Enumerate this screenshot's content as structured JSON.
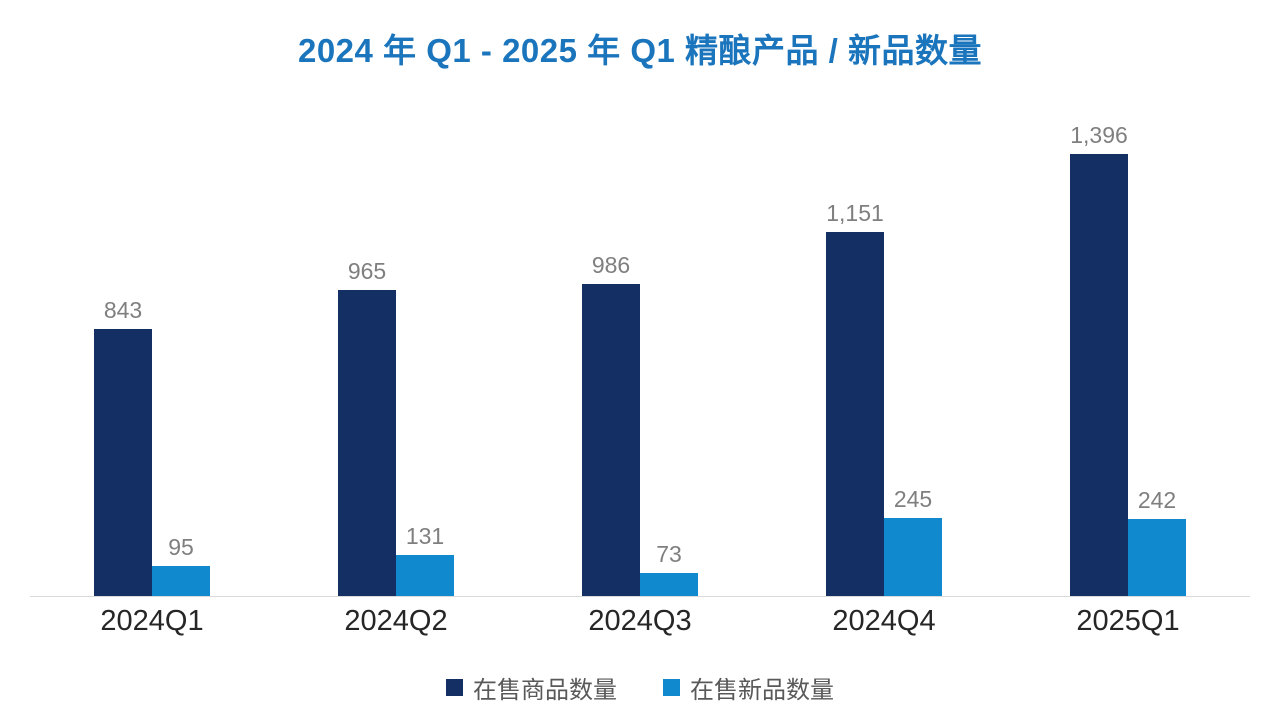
{
  "title": "2024 年 Q1 - 2025 年 Q1 精酿产品 / 新品数量",
  "colors": {
    "title": "#1B75BC",
    "data_label": "#7F7F7F",
    "axis_label": "#262626",
    "legend_text": "#595959",
    "baseline": "#D9D9D9",
    "background": "#FFFFFF"
  },
  "chart_data": {
    "type": "bar",
    "title": "2024 年 Q1 - 2025 年 Q1 精酿产品 / 新品数量",
    "categories": [
      "2024Q1",
      "2024Q2",
      "2024Q3",
      "2024Q4",
      "2025Q1"
    ],
    "series": [
      {
        "name": "在售商品数量",
        "values": [
          843,
          965,
          986,
          1151,
          1396
        ],
        "labels": [
          "843",
          "965",
          "986",
          "1,151",
          "1,396"
        ],
        "color": "#132F63"
      },
      {
        "name": "在售新品数量",
        "values": [
          95,
          131,
          73,
          245,
          242
        ],
        "labels": [
          "95",
          "131",
          "73",
          "245",
          "242"
        ],
        "color": "#1089CF"
      }
    ],
    "xlabel": "",
    "ylabel": "",
    "ylim": [
      0,
      1500
    ],
    "grid": false,
    "y_axis_visible": false,
    "legend_position": "bottom",
    "data_labels": true
  }
}
